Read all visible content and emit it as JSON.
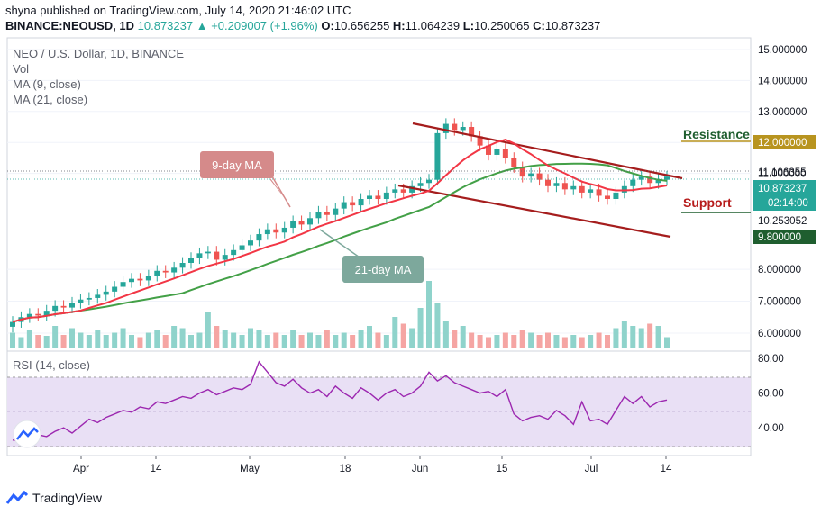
{
  "header": {
    "line1": "shyna published on TradingView.com, July 14, 2020 21:46:02 UTC",
    "symbol": "BINANCE:NEOUSD, 1D",
    "last": "10.873237",
    "change": "+0.209007 (+1.96%)",
    "open_label": "O:",
    "open": "10.656255",
    "high_label": "H:",
    "high": "11.064239",
    "low_label": "L:",
    "low": "10.250065",
    "close_label": "C:",
    "close": "10.873237"
  },
  "legend": {
    "title": "NEO / U.S. Dollar, 1D, BINANCE",
    "vol": "Vol",
    "ma9": "MA (9, close)",
    "ma21": "MA (21, close)"
  },
  "annotations": {
    "ma9": "9-day MA",
    "ma21": "21-day MA",
    "resistance": "Resistance",
    "support": "Support"
  },
  "price_labels": {
    "resistance_level": "12.000000",
    "support_level": "9.800000",
    "high_marker": "11.106355",
    "close_marker": "10.873237",
    "countdown": "02:14:00",
    "low_marker": "10.253052"
  },
  "rsi_title": "RSI (14, close)",
  "footer_brand": "TradingView",
  "colors": {
    "up": "#26a69a",
    "down": "#ef5350",
    "ma9": "#f23645",
    "ma21": "#43a047",
    "channel": "#a51d1d",
    "rsi_line": "#9c27b0",
    "rsi_band": "#e9e0f5",
    "label_dark": "#131722",
    "label_gold": "#b8941f",
    "label_green": "#1f5e2f",
    "ann_red": "#d58a8a",
    "ann_teal": "#7da89c"
  },
  "chart_data": [
    {
      "type": "candlestick",
      "title": "NEO / U.S. Dollar, 1D, BINANCE",
      "y_ticks": [
        "15.000000",
        "14.000000",
        "13.000000",
        "12.000000",
        "11.000000",
        "8.000000",
        "7.000000",
        "6.000000"
      ],
      "x_ticks": [
        "Apr",
        "14",
        "May",
        "18",
        "Jun",
        "15",
        "Jul",
        "14"
      ],
      "ylim": [
        5.6,
        15.2
      ],
      "resistance": 12.0,
      "support": 9.8,
      "close": [
        6.35,
        6.5,
        6.6,
        6.55,
        6.7,
        6.85,
        6.8,
        6.95,
        7.05,
        7.1,
        7.2,
        7.3,
        7.45,
        7.6,
        7.7,
        7.65,
        7.8,
        7.95,
        7.9,
        8.05,
        8.2,
        8.35,
        8.5,
        8.55,
        8.3,
        8.45,
        8.6,
        8.75,
        8.9,
        9.1,
        9.25,
        9.15,
        9.3,
        9.5,
        9.4,
        9.6,
        9.8,
        9.7,
        9.9,
        10.1,
        10.0,
        10.2,
        10.3,
        10.2,
        10.4,
        10.5,
        10.4,
        10.6,
        10.7,
        10.8,
        12.3,
        12.6,
        12.4,
        12.5,
        12.2,
        11.9,
        11.6,
        11.8,
        11.5,
        11.2,
        10.9,
        11.0,
        10.8,
        10.6,
        10.7,
        10.5,
        10.6,
        10.4,
        10.5,
        10.3,
        10.2,
        10.4,
        10.6,
        10.8,
        10.9,
        10.7,
        10.8,
        10.9
      ],
      "volume": [
        0.35,
        0.25,
        0.4,
        0.3,
        0.28,
        0.5,
        0.3,
        0.45,
        0.35,
        0.3,
        0.4,
        0.3,
        0.35,
        0.45,
        0.3,
        0.25,
        0.35,
        0.4,
        0.3,
        0.5,
        0.45,
        0.3,
        0.35,
        0.8,
        0.5,
        0.4,
        0.35,
        0.3,
        0.45,
        0.4,
        0.3,
        0.35,
        0.3,
        0.4,
        0.3,
        0.35,
        0.3,
        0.4,
        0.3,
        0.35,
        0.3,
        0.4,
        0.5,
        0.35,
        0.3,
        0.7,
        0.55,
        0.45,
        0.9,
        1.5,
        1.0,
        0.6,
        0.4,
        0.5,
        0.35,
        0.3,
        0.25,
        0.3,
        0.35,
        0.3,
        0.4,
        0.35,
        0.3,
        0.35,
        0.3,
        0.25,
        0.3,
        0.25,
        0.3,
        0.35,
        0.3,
        0.45,
        0.6,
        0.5,
        0.45,
        0.55,
        0.5,
        0.25
      ],
      "ma9_label": "MA (9, close)",
      "ma21_label": "MA (21, close)"
    },
    {
      "type": "line",
      "title": "RSI (14, close)",
      "y_ticks": [
        "80.00",
        "60.00",
        "40.00"
      ],
      "ylim": [
        22,
        85
      ],
      "band": [
        30,
        70
      ],
      "values": [
        33,
        32,
        34,
        36,
        35,
        38,
        40,
        37,
        41,
        45,
        43,
        46,
        48,
        50,
        49,
        52,
        51,
        55,
        54,
        56,
        58,
        57,
        60,
        62,
        59,
        61,
        63,
        62,
        65,
        78,
        72,
        66,
        64,
        68,
        63,
        60,
        62,
        58,
        64,
        60,
        57,
        63,
        60,
        56,
        60,
        62,
        58,
        60,
        64,
        72,
        67,
        70,
        66,
        64,
        62,
        60,
        61,
        58,
        62,
        48,
        44,
        46,
        47,
        45,
        50,
        47,
        42,
        55,
        44,
        45,
        42,
        50,
        58,
        54,
        58,
        52,
        55,
        56
      ]
    }
  ]
}
